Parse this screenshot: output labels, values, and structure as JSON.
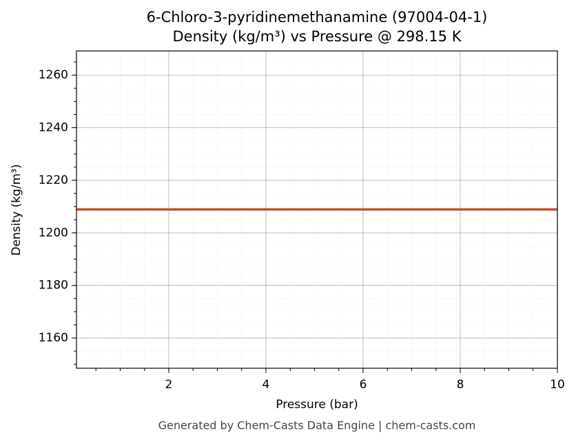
{
  "chart_data": {
    "type": "line",
    "title": "6-Chloro-3-pyridinemethanamine (97004-04-1)",
    "subtitle": "Density (kg/m³) vs Pressure @ 298.15 K",
    "x_label": "Pressure (bar)",
    "y_label": "Density (kg/m³)",
    "footer": "Generated by Chem-Casts Data Engine | chem-casts.com",
    "x": [
      0.1,
      10
    ],
    "series": [
      {
        "name": "Density",
        "color": "#c8502a",
        "values": [
          1208.9,
          1208.9
        ]
      }
    ],
    "xlim": [
      0.1,
      10
    ],
    "xticks": [
      2,
      4,
      6,
      8,
      10
    ],
    "ylim": [
      1148.5,
      1269.2
    ],
    "yticks": [
      1160,
      1180,
      1200,
      1220,
      1240,
      1260
    ],
    "grid": true,
    "minor_grid": true
  }
}
